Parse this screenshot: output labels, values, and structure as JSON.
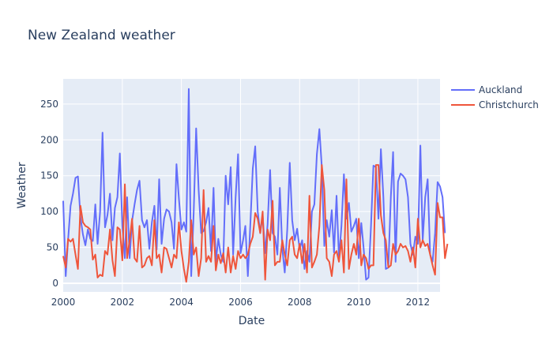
{
  "chart_data": {
    "type": "line",
    "title": "New Zealand weather",
    "xlabel": "Date",
    "ylabel": "Weather",
    "xlim": [
      "2000-01-01",
      "2012-10-01"
    ],
    "ylim": [
      -12,
      285
    ],
    "x_ticks": [
      {
        "date": "2000-01-01",
        "label": "2000"
      },
      {
        "date": "2002-01-01",
        "label": "2002"
      },
      {
        "date": "2004-01-01",
        "label": "2004"
      },
      {
        "date": "2006-01-01",
        "label": "2006"
      },
      {
        "date": "2008-01-01",
        "label": "2008"
      },
      {
        "date": "2010-01-01",
        "label": "2010"
      },
      {
        "date": "2012-01-01",
        "label": "2012"
      }
    ],
    "y_ticks": [
      0,
      50,
      100,
      150,
      200,
      250
    ],
    "grid": true,
    "legend": "top-right",
    "start": "2000-01",
    "series": [
      {
        "name": "Auckland",
        "color": "#636efa",
        "values": [
          115,
          10,
          60,
          108,
          125,
          147,
          149,
          92,
          68,
          53,
          75,
          62,
          59,
          110,
          55,
          100,
          210,
          78,
          95,
          125,
          60,
          105,
          120,
          181,
          80,
          35,
          120,
          35,
          87,
          110,
          130,
          143,
          88,
          78,
          88,
          48,
          85,
          108,
          47,
          145,
          55,
          90,
          103,
          100,
          85,
          48,
          166,
          118,
          75,
          85,
          72,
          271,
          10,
          100,
          216,
          130,
          70,
          73,
          85,
          105,
          45,
          133,
          30,
          62,
          40,
          30,
          150,
          110,
          162,
          40,
          120,
          180,
          42,
          60,
          80,
          10,
          80,
          160,
          191,
          100,
          70,
          95,
          42,
          82,
          158,
          70,
          65,
          40,
          133,
          48,
          15,
          75,
          168,
          88,
          60,
          76,
          48,
          60,
          20,
          45,
          30,
          100,
          110,
          180,
          215,
          162,
          52,
          88,
          65,
          102,
          43,
          122,
          35,
          80,
          152,
          90,
          112,
          72,
          80,
          90,
          35,
          84,
          50,
          5,
          8,
          80,
          164,
          162,
          90,
          187,
          120,
          20,
          22,
          120,
          183,
          30,
          142,
          153,
          150,
          145,
          120,
          55,
          40,
          65,
          55,
          192,
          60,
          120,
          145,
          40,
          30,
          70,
          141,
          135,
          120,
          70
        ]
      },
      {
        "name": "Christchurch",
        "color": "#ef553b",
        "values": [
          38,
          22,
          62,
          58,
          62,
          40,
          20,
          108,
          85,
          80,
          78,
          75,
          33,
          40,
          8,
          12,
          10,
          45,
          40,
          75,
          32,
          10,
          78,
          75,
          32,
          138,
          35,
          60,
          90,
          35,
          30,
          80,
          22,
          25,
          35,
          38,
          25,
          88,
          35,
          40,
          15,
          50,
          48,
          35,
          22,
          40,
          35,
          85,
          45,
          20,
          2,
          30,
          88,
          40,
          50,
          10,
          35,
          130,
          30,
          38,
          30,
          80,
          18,
          40,
          28,
          42,
          15,
          50,
          15,
          38,
          20,
          45,
          35,
          40,
          35,
          40,
          55,
          65,
          98,
          90,
          70,
          100,
          5,
          75,
          60,
          115,
          25,
          30,
          30,
          60,
          40,
          25,
          60,
          65,
          40,
          35,
          55,
          28,
          55,
          15,
          122,
          22,
          30,
          40,
          80,
          165,
          130,
          35,
          30,
          10,
          40,
          45,
          30,
          60,
          15,
          145,
          20,
          40,
          55,
          40,
          90,
          25,
          40,
          35,
          20,
          25,
          25,
          165,
          165,
          95,
          70,
          60,
          22,
          25,
          55,
          40,
          45,
          55,
          50,
          52,
          45,
          30,
          50,
          22,
          90,
          50,
          60,
          52,
          55,
          40,
          25,
          12,
          112,
          92,
          92,
          35,
          55
        ]
      }
    ]
  }
}
